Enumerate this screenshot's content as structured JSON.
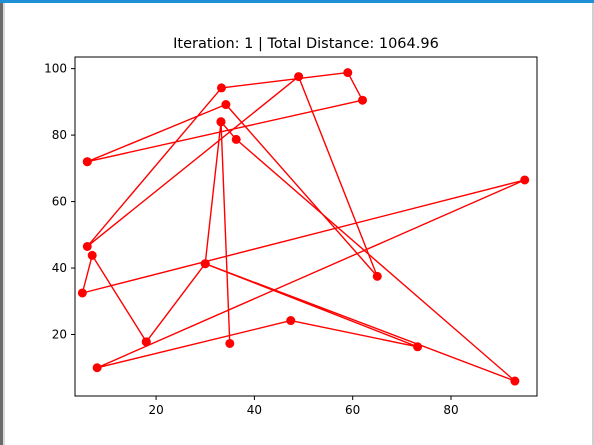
{
  "chart_data": {
    "type": "line",
    "title": "Iteration: 1 | Total Distance: 1064.96",
    "xlabel": "",
    "ylabel": "",
    "xlim": [
      3.5,
      97.5
    ],
    "ylim": [
      1.5,
      103.5
    ],
    "x_ticks": [
      20,
      40,
      60,
      80
    ],
    "y_ticks": [
      20,
      40,
      60,
      80,
      100
    ],
    "grid": false,
    "series": [
      {
        "color": "#ff0000",
        "marker": "o",
        "points": [
          [
            6,
            72
          ],
          [
            62,
            90.5
          ],
          [
            59,
            98.8
          ],
          [
            33.3,
            94.2
          ],
          [
            6,
            46.5
          ],
          [
            49,
            97.6
          ],
          [
            65,
            37.5
          ],
          [
            34.2,
            89.2
          ],
          [
            6,
            72
          ]
        ]
      },
      {
        "color": "#ff0000",
        "marker": "o",
        "points": [
          [
            18,
            17.8
          ],
          [
            7,
            43.8
          ],
          [
            5,
            32.5
          ],
          [
            95,
            66.5
          ],
          [
            8,
            10
          ],
          [
            47.4,
            24.2
          ],
          [
            73.2,
            16.3
          ],
          [
            30,
            41.3
          ],
          [
            33.2,
            84
          ],
          [
            35,
            17.3
          ],
          [
            33.2,
            84
          ],
          [
            36.3,
            78.7
          ],
          [
            93,
            6
          ],
          [
            30,
            41.3
          ],
          [
            18,
            17.8
          ]
        ]
      }
    ]
  }
}
